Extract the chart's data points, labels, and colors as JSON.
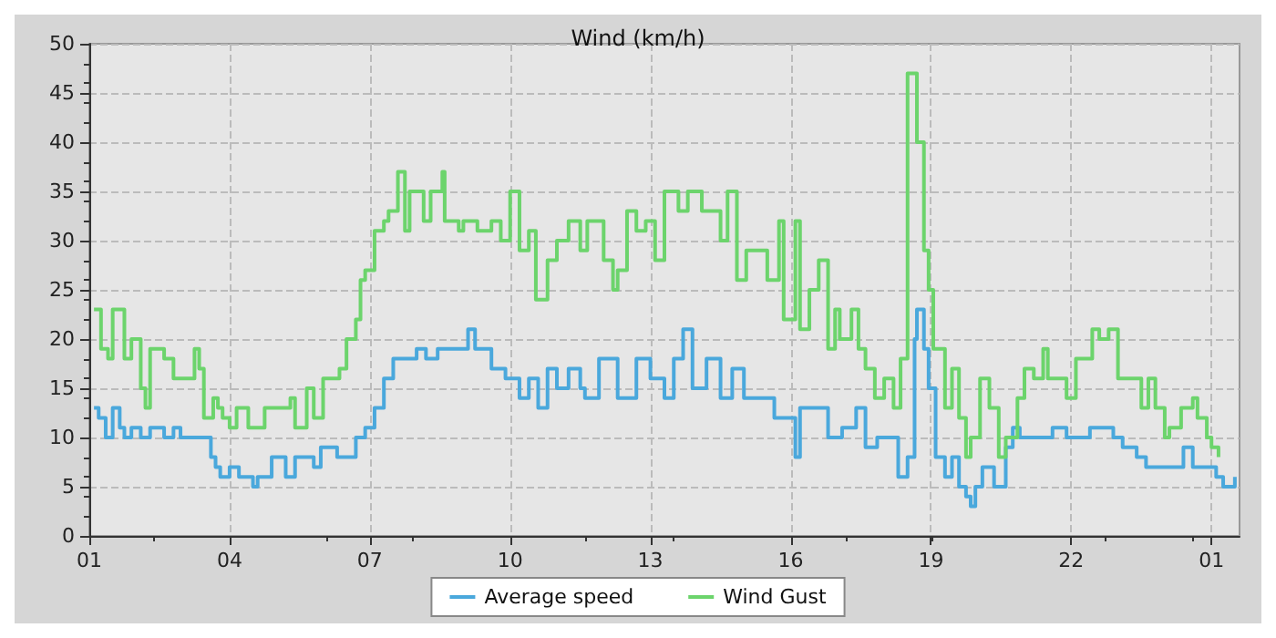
{
  "chart_data": {
    "type": "step",
    "title": "Wind (km/h)",
    "xlim": [
      "--01-01T01:00",
      "--01-02T01:36"
    ],
    "ylim": [
      0,
      50
    ],
    "xticks": [
      {
        "value": "--01-01T01:00",
        "label": "01"
      },
      {
        "value": "--01-01T04:00",
        "label": "04"
      },
      {
        "value": "--01-01T07:00",
        "label": "07"
      },
      {
        "value": "--01-01T10:00",
        "label": "10"
      },
      {
        "value": "--01-01T13:00",
        "label": "13"
      },
      {
        "value": "--01-01T16:00",
        "label": "16"
      },
      {
        "value": "--01-01T19:00",
        "label": "19"
      },
      {
        "value": "--01-01T22:00",
        "label": "22"
      },
      {
        "value": "--01-02T01:00",
        "label": "01"
      }
    ],
    "yticks": [
      0,
      5,
      10,
      15,
      20,
      25,
      30,
      35,
      40,
      45,
      50
    ],
    "grid": true,
    "legend": "bottom",
    "marker": "none",
    "series": [
      {
        "name": "Average speed",
        "color": "#4aa8dc",
        "x": [
          "--01-01T01:06",
          "--01-01T01:12",
          "--01-01T01:21",
          "--01-01T01:30",
          "--01-01T01:39",
          "--01-01T01:45",
          "--01-01T01:54",
          "--01-01T02:06",
          "--01-01T02:18",
          "--01-01T02:36",
          "--01-01T02:48",
          "--01-01T02:57",
          "--01-01T03:36",
          "--01-01T03:42",
          "--01-01T03:48",
          "--01-01T04:00",
          "--01-01T04:12",
          "--01-01T04:30",
          "--01-01T04:36",
          "--01-01T04:54",
          "--01-01T05:12",
          "--01-01T05:24",
          "--01-01T05:48",
          "--01-01T05:57",
          "--01-01T06:18",
          "--01-01T06:42",
          "--01-01T06:54",
          "--01-01T07:06",
          "--01-01T07:18",
          "--01-01T07:30",
          "--01-01T08:00",
          "--01-01T08:12",
          "--01-01T08:27",
          "--01-01T09:06",
          "--01-01T09:15",
          "--01-01T09:36",
          "--01-01T09:54",
          "--01-01T10:12",
          "--01-01T10:24",
          "--01-01T10:36",
          "--01-01T10:48",
          "--01-01T11:00",
          "--01-01T11:15",
          "--01-01T11:30",
          "--01-01T11:36",
          "--01-01T11:54",
          "--01-01T12:18",
          "--01-01T12:42",
          "--01-01T13:00",
          "--01-01T13:18",
          "--01-01T13:30",
          "--01-01T13:42",
          "--01-01T13:54",
          "--01-01T14:12",
          "--01-01T14:30",
          "--01-01T14:45",
          "--01-01T15:00",
          "--01-01T15:21",
          "--01-01T15:39",
          "--01-01T16:06",
          "--01-01T16:12",
          "--01-01T16:36",
          "--01-01T16:48",
          "--01-01T17:06",
          "--01-01T17:24",
          "--01-01T17:36",
          "--01-01T17:51",
          "--01-01T18:18",
          "--01-01T18:30",
          "--01-01T18:39",
          "--01-01T18:42",
          "--01-01T18:51",
          "--01-01T18:57",
          "--01-01T19:06",
          "--01-01T19:18",
          "--01-01T19:27",
          "--01-01T19:36",
          "--01-01T19:45",
          "--01-01T19:51",
          "--01-01T19:57",
          "--01-01T20:06",
          "--01-01T20:21",
          "--01-01T20:36",
          "--01-01T20:45",
          "--01-01T20:54",
          "--01-01T21:36",
          "--01-01T21:54",
          "--01-01T22:24",
          "--01-01T22:54",
          "--01-01T23:06",
          "--01-01T23:24",
          "--01-01T23:36",
          "--01-02T00:00",
          "--01-02T00:24",
          "--01-02T00:36",
          "--01-02T01:06",
          "--01-02T01:15",
          "--01-02T01:30"
        ],
        "values": [
          13,
          12,
          10,
          13,
          11,
          10,
          11,
          10,
          11,
          10,
          11,
          10,
          8,
          7,
          6,
          7,
          6,
          5,
          6,
          8,
          6,
          8,
          7,
          9,
          8,
          10,
          11,
          13,
          16,
          18,
          19,
          18,
          19,
          21,
          19,
          17,
          16,
          14,
          16,
          13,
          17,
          15,
          17,
          15,
          14,
          18,
          14,
          18,
          16,
          14,
          18,
          21,
          15,
          18,
          14,
          17,
          14,
          14,
          12,
          8,
          13,
          13,
          10,
          11,
          13,
          9,
          10,
          6,
          8,
          20,
          23,
          19,
          15,
          8,
          6,
          8,
          5,
          4,
          3,
          5,
          7,
          5,
          9,
          11,
          10,
          11,
          10,
          11,
          10,
          9,
          8,
          7,
          7,
          9,
          7,
          6,
          5,
          6
        ]
      },
      {
        "name": "Wind Gust",
        "color": "#6cd46c",
        "x": [
          "--01-01T01:06",
          "--01-01T01:15",
          "--01-01T01:24",
          "--01-01T01:30",
          "--01-01T01:42",
          "--01-01T01:45",
          "--01-01T01:54",
          "--01-01T02:06",
          "--01-01T02:12",
          "--01-01T02:18",
          "--01-01T02:36",
          "--01-01T02:48",
          "--01-01T03:15",
          "--01-01T03:21",
          "--01-01T03:27",
          "--01-01T03:39",
          "--01-01T03:45",
          "--01-01T03:51",
          "--01-01T04:00",
          "--01-01T04:09",
          "--01-01T04:24",
          "--01-01T04:45",
          "--01-01T05:06",
          "--01-01T05:18",
          "--01-01T05:24",
          "--01-01T05:39",
          "--01-01T05:48",
          "--01-01T06:00",
          "--01-01T06:21",
          "--01-01T06:30",
          "--01-01T06:42",
          "--01-01T06:48",
          "--01-01T06:54",
          "--01-01T07:06",
          "--01-01T07:18",
          "--01-01T07:24",
          "--01-01T07:36",
          "--01-01T07:45",
          "--01-01T07:51",
          "--01-01T08:09",
          "--01-01T08:18",
          "--01-01T08:33",
          "--01-01T08:36",
          "--01-01T08:54",
          "--01-01T09:00",
          "--01-01T09:18",
          "--01-01T09:36",
          "--01-01T09:48",
          "--01-01T10:00",
          "--01-01T10:12",
          "--01-01T10:24",
          "--01-01T10:33",
          "--01-01T10:48",
          "--01-01T11:00",
          "--01-01T11:15",
          "--01-01T11:30",
          "--01-01T11:39",
          "--01-01T12:00",
          "--01-01T12:12",
          "--01-01T12:18",
          "--01-01T12:30",
          "--01-01T12:42",
          "--01-01T12:54",
          "--01-01T13:06",
          "--01-01T13:18",
          "--01-01T13:36",
          "--01-01T13:48",
          "--01-01T14:06",
          "--01-01T14:30",
          "--01-01T14:39",
          "--01-01T14:51",
          "--01-01T15:03",
          "--01-01T15:21",
          "--01-01T15:30",
          "--01-01T15:45",
          "--01-01T15:51",
          "--01-01T16:06",
          "--01-01T16:12",
          "--01-01T16:24",
          "--01-01T16:36",
          "--01-01T16:48",
          "--01-01T16:57",
          "--01-01T17:03",
          "--01-01T17:18",
          "--01-01T17:27",
          "--01-01T17:36",
          "--01-01T17:48",
          "--01-01T18:00",
          "--01-01T18:12",
          "--01-01T18:21",
          "--01-01T18:30",
          "--01-01T18:42",
          "--01-01T18:51",
          "--01-01T18:57",
          "--01-01T19:03",
          "--01-01T19:18",
          "--01-01T19:27",
          "--01-01T19:36",
          "--01-01T19:45",
          "--01-01T19:51",
          "--01-01T20:03",
          "--01-01T20:15",
          "--01-01T20:27",
          "--01-01T20:36",
          "--01-01T20:51",
          "--01-01T21:00",
          "--01-01T21:12",
          "--01-01T21:24",
          "--01-01T21:30",
          "--01-01T21:54",
          "--01-01T22:06",
          "--01-01T22:27",
          "--01-01T22:36",
          "--01-01T22:48",
          "--01-01T23:00",
          "--01-01T23:18",
          "--01-01T23:30",
          "--01-01T23:39",
          "--01-01T23:48",
          "--01-02T00:00",
          "--01-02T00:06",
          "--01-02T00:21",
          "--01-02T00:36",
          "--01-02T00:42",
          "--01-02T00:54",
          "--01-02T01:00",
          "--01-02T01:09"
        ],
        "values": [
          23,
          19,
          18,
          23,
          23,
          18,
          20,
          15,
          13,
          19,
          18,
          16,
          19,
          17,
          12,
          14,
          13,
          12,
          11,
          13,
          11,
          13,
          13,
          14,
          11,
          15,
          12,
          16,
          17,
          20,
          22,
          26,
          27,
          31,
          32,
          33,
          37,
          31,
          35,
          32,
          35,
          37,
          32,
          31,
          32,
          31,
          32,
          30,
          35,
          29,
          31,
          24,
          28,
          30,
          32,
          29,
          32,
          28,
          25,
          27,
          33,
          31,
          32,
          28,
          35,
          33,
          35,
          33,
          30,
          35,
          26,
          29,
          29,
          26,
          32,
          22,
          32,
          21,
          25,
          28,
          19,
          23,
          20,
          23,
          19,
          17,
          14,
          16,
          13,
          18,
          47,
          40,
          29,
          25,
          19,
          13,
          17,
          12,
          8,
          10,
          16,
          13,
          8,
          10,
          14,
          17,
          16,
          19,
          16,
          14,
          18,
          21,
          20,
          21,
          16,
          16,
          13,
          16,
          13,
          10,
          11,
          13,
          14,
          12,
          10,
          9,
          8
        ]
      }
    ]
  }
}
